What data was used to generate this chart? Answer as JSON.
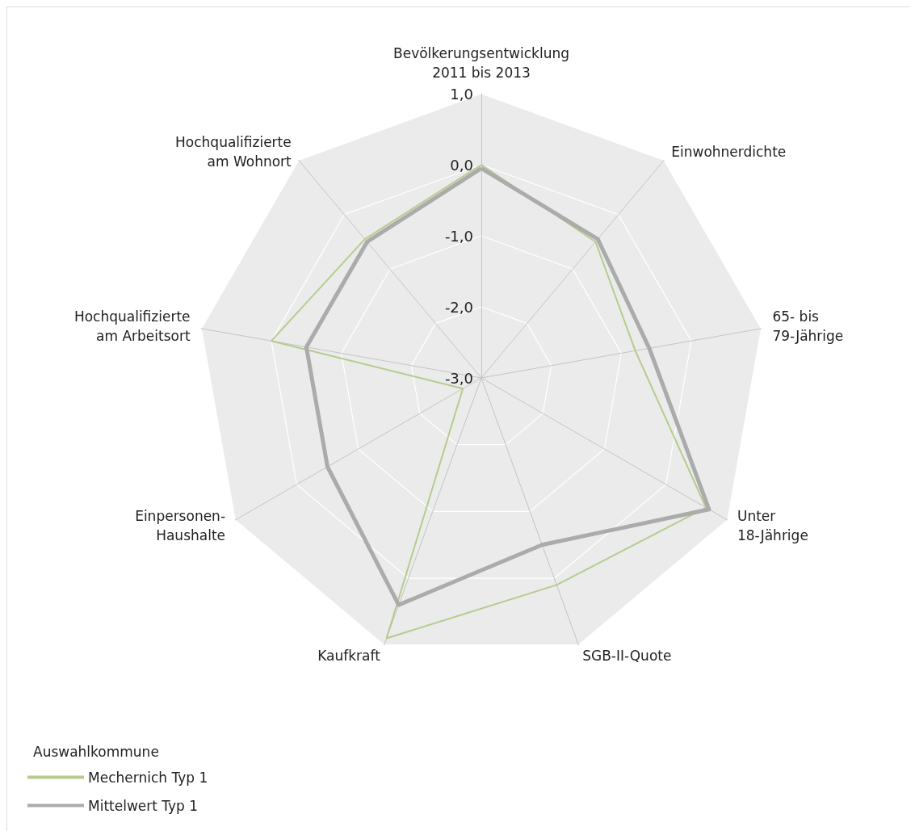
{
  "chart_data": {
    "type": "radar",
    "categories": [
      "Bevölkerungsentwicklung\n2011 bis 2013",
      "Einwohnerdichte",
      "65- bis\n79-Jährige",
      "Unter\n18-Jährige",
      "SGB-II-Quote",
      "Kaufkraft",
      "Einpersonen-\nHaushalte",
      "Hochqualifizierte\nam Arbeitsort",
      "Hochqualifizierte\nam Wohnort"
    ],
    "series": [
      {
        "name": "Mechernich Typ 1",
        "color": "#b5cc8e",
        "values": [
          0.0,
          -0.5,
          -0.8,
          0.65,
          0.1,
          0.9,
          -2.7,
          0.0,
          -0.45
        ]
      },
      {
        "name": "Mittelwert Typ 1",
        "color": "#ababab",
        "values": [
          -0.05,
          -0.45,
          -0.6,
          0.7,
          -0.5,
          0.4,
          -0.5,
          -0.5,
          -0.5
        ]
      }
    ],
    "ylim": [
      -3,
      1
    ],
    "yticks": [
      {
        "value": -3,
        "label": "-3,0"
      },
      {
        "value": -2,
        "label": "-2,0"
      },
      {
        "value": -1,
        "label": "-1,0"
      },
      {
        "value": 0,
        "label": "0,0"
      },
      {
        "value": 1,
        "label": "1,0"
      }
    ],
    "grid": true,
    "legend": "bottom left",
    "legend_title": "Auswahlkommune",
    "marker": "none",
    "line_style": "solid"
  }
}
